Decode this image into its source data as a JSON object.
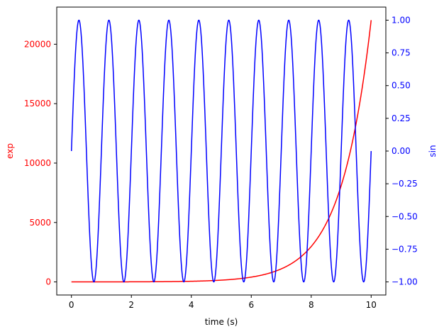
{
  "chart_data": {
    "type": "line",
    "x": {
      "label": "time (s)",
      "range": [
        -0.49,
        10.49
      ],
      "ticks": [
        0,
        2,
        4,
        6,
        8,
        10
      ],
      "tick_labels": [
        "0",
        "2",
        "4",
        "6",
        "8",
        "10"
      ],
      "sampling": {
        "start": 0,
        "stop": 10,
        "step": 0.01
      }
    },
    "y_left": {
      "label": "exp",
      "color": "#ff0000",
      "range": [
        -1101,
        23126
      ],
      "ticks": [
        0,
        5000,
        10000,
        15000,
        20000
      ],
      "tick_labels": [
        "0",
        "5000",
        "10000",
        "15000",
        "20000"
      ]
    },
    "y_right": {
      "label": "sin",
      "color": "#0000ff",
      "range": [
        -1.1,
        1.1
      ],
      "ticks": [
        -1,
        -0.75,
        -0.5,
        -0.25,
        0,
        0.25,
        0.5,
        0.75,
        1
      ],
      "tick_labels": [
        "−1.00",
        "−0.75",
        "−0.50",
        "−0.25",
        "0.00",
        "0.25",
        "0.50",
        "0.75",
        "1.00"
      ]
    },
    "series": [
      {
        "name": "exp",
        "axis": "left",
        "color": "#ff0000",
        "function": "exp(t)"
      },
      {
        "name": "sin",
        "axis": "right",
        "color": "#0000ff",
        "function": "sin(2πt)"
      }
    ],
    "grid": false,
    "legend": "none"
  }
}
